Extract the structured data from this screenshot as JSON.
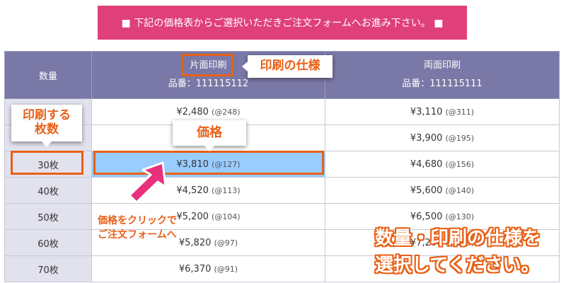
{
  "banner": {
    "text": "■ 下記の価格表からご選択いただきご注文フォームへお進み下さい。 ■"
  },
  "table": {
    "headers": {
      "qty": "数量",
      "single_title": "片面印刷",
      "single_code": "品番：111115112",
      "double_title": "両面印刷",
      "double_code": "品番：111115111"
    },
    "rows": [
      {
        "qty": "",
        "single": "¥2,480",
        "single_unit": "(@248)",
        "double": "¥3,110",
        "double_unit": "(@311)"
      },
      {
        "qty": "",
        "single": "",
        "single_unit": "",
        "double": "¥3,900",
        "double_unit": "(@195)"
      },
      {
        "qty": "30枚",
        "single": "¥3,810",
        "single_unit": "(@127)",
        "double": "¥4,680",
        "double_unit": "(@156)"
      },
      {
        "qty": "40枚",
        "single": "¥4,520",
        "single_unit": "(@113)",
        "double": "¥5,600",
        "double_unit": "(@140)"
      },
      {
        "qty": "50枚",
        "single": "¥5,200",
        "single_unit": "(@104)",
        "double": "¥6,500",
        "double_unit": "(@130)"
      },
      {
        "qty": "60枚",
        "single": "¥5,820",
        "single_unit": "(@97)",
        "double": "¥7,200",
        "double_unit": "(@120)"
      },
      {
        "qty": "70枚",
        "single": "¥6,370",
        "single_unit": "(@91)",
        "double": "",
        "double_unit": ""
      }
    ]
  },
  "annotations": {
    "spec": "印刷の仕様",
    "qty_line1": "印刷する",
    "qty_line2": "枚数",
    "price": "価格",
    "click_line1": "価格をクリックで",
    "click_line2": "ご注文フォームへ",
    "instruction_line1": "数量・印刷の仕様を",
    "instruction_line2": "選択してください。"
  },
  "colors": {
    "banner": "#e0407a",
    "header": "#7a78a6",
    "highlight": "#99ccff",
    "accent": "#e86016"
  }
}
